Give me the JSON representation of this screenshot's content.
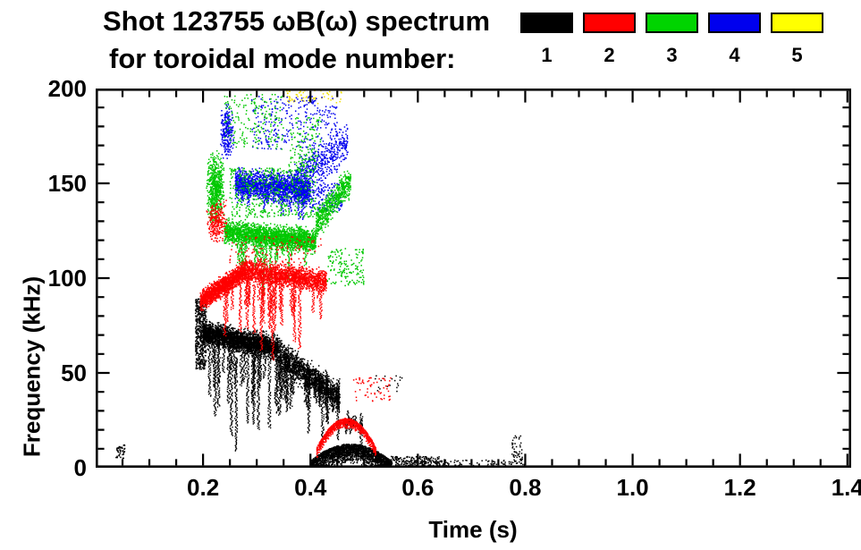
{
  "title": {
    "line1": "Shot 123755 ωB(ω) spectrum",
    "line2": "for toroidal mode number:"
  },
  "legend": {
    "items": [
      {
        "label": "1",
        "color": "#000000"
      },
      {
        "label": "2",
        "color": "#ff0000"
      },
      {
        "label": "3",
        "color": "#00d400"
      },
      {
        "label": "4",
        "color": "#0000ee"
      },
      {
        "label": "5",
        "color": "#ffff00"
      }
    ]
  },
  "chart_data": {
    "type": "scatter",
    "title": "Shot 123755 ωB(ω) spectrum for toroidal mode number: 1 2 3 4 5",
    "xlabel": "Time (s)",
    "ylabel": "Frequency (kHz)",
    "xlim": [
      0.0,
      1.407
    ],
    "ylim": [
      0,
      200
    ],
    "xticks": {
      "values": [
        0.2,
        0.4,
        0.6,
        0.8,
        1.0,
        1.2,
        1.4
      ],
      "labels": [
        "0.2",
        "0.4",
        "0.6",
        "0.8",
        "1.0",
        "1.2",
        "1.4"
      ]
    },
    "yticks": {
      "values": [
        0,
        50,
        100,
        150,
        200
      ],
      "labels": [
        "0",
        "50",
        "100",
        "150",
        "200"
      ]
    },
    "xminor_step": 0.05,
    "yminor_step": 10,
    "grid": false,
    "legend_position": "top-right",
    "series": [
      {
        "name": "1",
        "mode": 1,
        "color": "#000000",
        "z": 4,
        "clusters": [
          {
            "kind": "cloud",
            "n": 500,
            "t": [
              0.186,
              0.206
            ],
            "f": [
              52,
              89
            ]
          },
          {
            "kind": "band",
            "n": 3000,
            "t": [
              0.2,
              0.34
            ],
            "fc": [
              71,
              63
            ],
            "spread": 7
          },
          {
            "kind": "band",
            "n": 1400,
            "t": [
              0.34,
              0.455
            ],
            "fc": [
              60,
              36
            ],
            "spread": 9
          },
          {
            "kind": "streaks",
            "count": 55,
            "t": [
              0.205,
              0.455
            ],
            "ftop": [
              68,
              45
            ],
            "fmin": 3
          },
          {
            "kind": "arc",
            "n": 2200,
            "tc": 0.475,
            "halfw": 0.075,
            "base": 3.5,
            "peak": 12.5,
            "thick": 11
          },
          {
            "kind": "streaks",
            "count": 12,
            "t": [
              0.43,
              0.5
            ],
            "ftop": [
              35,
              25
            ],
            "fmin": 3
          },
          {
            "kind": "cloud",
            "n": 200,
            "t": [
              0.55,
              0.64
            ],
            "f": [
              1,
              6
            ]
          },
          {
            "kind": "cloud",
            "n": 90,
            "t": [
              0.63,
              0.8
            ],
            "f": [
              1,
              4
            ]
          },
          {
            "kind": "cloud",
            "n": 50,
            "t": [
              0.775,
              0.795
            ],
            "f": [
              2,
              17
            ]
          },
          {
            "kind": "cloud",
            "n": 40,
            "t": [
              0.038,
              0.055
            ],
            "f": [
              5,
              12
            ]
          },
          {
            "kind": "cloud",
            "n": 20,
            "t": [
              0.52,
              0.58
            ],
            "f": [
              40,
              50
            ]
          }
        ]
      },
      {
        "name": "2",
        "mode": 2,
        "color": "#ff0000",
        "z": 5,
        "clusters": [
          {
            "kind": "band",
            "n": 1500,
            "t": [
              0.195,
              0.28
            ],
            "fc": [
              88,
              104
            ],
            "spread": 6
          },
          {
            "kind": "band",
            "n": 1600,
            "t": [
              0.28,
              0.43
            ],
            "fc": [
              104,
              98
            ],
            "spread": 7
          },
          {
            "kind": "cloud",
            "n": 250,
            "t": [
              0.205,
              0.245
            ],
            "f": [
              118,
              142
            ],
            "gauss": true
          },
          {
            "kind": "cloud",
            "n": 120,
            "t": [
              0.25,
              0.42
            ],
            "f": [
              108,
              122
            ]
          },
          {
            "kind": "streaks",
            "count": 30,
            "t": [
              0.24,
              0.43
            ],
            "ftop": [
              100,
              98
            ],
            "fmin": 40
          },
          {
            "kind": "arc",
            "n": 850,
            "tc": 0.467,
            "halfw": 0.055,
            "base": 10.5,
            "peak": 26,
            "thick": 5.5
          },
          {
            "kind": "cloud",
            "n": 60,
            "t": [
              0.48,
              0.55
            ],
            "f": [
              35,
              48
            ]
          }
        ]
      },
      {
        "name": "3",
        "mode": 3,
        "color": "#00c800",
        "z": 3,
        "clusters": [
          {
            "kind": "cloud",
            "n": 600,
            "t": [
              0.205,
              0.24
            ],
            "f": [
              128,
              168
            ],
            "gauss": true
          },
          {
            "kind": "band",
            "n": 2200,
            "t": [
              0.24,
              0.41
            ],
            "fc": [
              124,
              120
            ],
            "spread": 7
          },
          {
            "kind": "cloud",
            "n": 500,
            "t": [
              0.25,
              0.41
            ],
            "f": [
              132,
              158
            ]
          },
          {
            "kind": "band",
            "n": 600,
            "t": [
              0.41,
              0.475
            ],
            "fc": [
              128,
              152
            ],
            "spread": 9
          },
          {
            "kind": "cloud",
            "n": 200,
            "t": [
              0.24,
              0.35
            ],
            "f": [
              168,
              197
            ]
          },
          {
            "kind": "cloud",
            "n": 150,
            "t": [
              0.36,
              0.42
            ],
            "f": [
              155,
              185
            ]
          },
          {
            "kind": "cloud",
            "n": 150,
            "t": [
              0.43,
              0.5
            ],
            "f": [
              96,
              116
            ]
          },
          {
            "kind": "streaks",
            "count": 18,
            "t": [
              0.26,
              0.4
            ],
            "ftop": [
              122,
              118
            ],
            "fmin": 85
          }
        ]
      },
      {
        "name": "4",
        "mode": 4,
        "color": "#0000ee",
        "z": 2,
        "clusters": [
          {
            "kind": "cloud",
            "n": 250,
            "t": [
              0.232,
              0.258
            ],
            "f": [
              162,
              192
            ],
            "gauss": true
          },
          {
            "kind": "band",
            "n": 1800,
            "t": [
              0.26,
              0.4
            ],
            "fc": [
              150,
              146
            ],
            "spread": 9
          },
          {
            "kind": "band",
            "n": 500,
            "t": [
              0.37,
              0.47
            ],
            "fc": [
              150,
              172
            ],
            "spread": 12
          },
          {
            "kind": "cloud",
            "n": 300,
            "t": [
              0.29,
              0.45
            ],
            "f": [
              168,
              196
            ]
          },
          {
            "kind": "cloud",
            "n": 150,
            "t": [
              0.4,
              0.46
            ],
            "f": [
              135,
              150
            ]
          },
          {
            "kind": "streaks",
            "count": 10,
            "t": [
              0.27,
              0.39
            ],
            "ftop": [
              148,
              144
            ],
            "fmin": 125
          }
        ]
      },
      {
        "name": "5",
        "mode": 5,
        "color": "#f0e000",
        "z": 1,
        "clusters": [
          {
            "kind": "cloud",
            "n": 70,
            "t": [
              0.355,
              0.46
            ],
            "f": [
              192,
              200
            ]
          }
        ]
      }
    ]
  }
}
